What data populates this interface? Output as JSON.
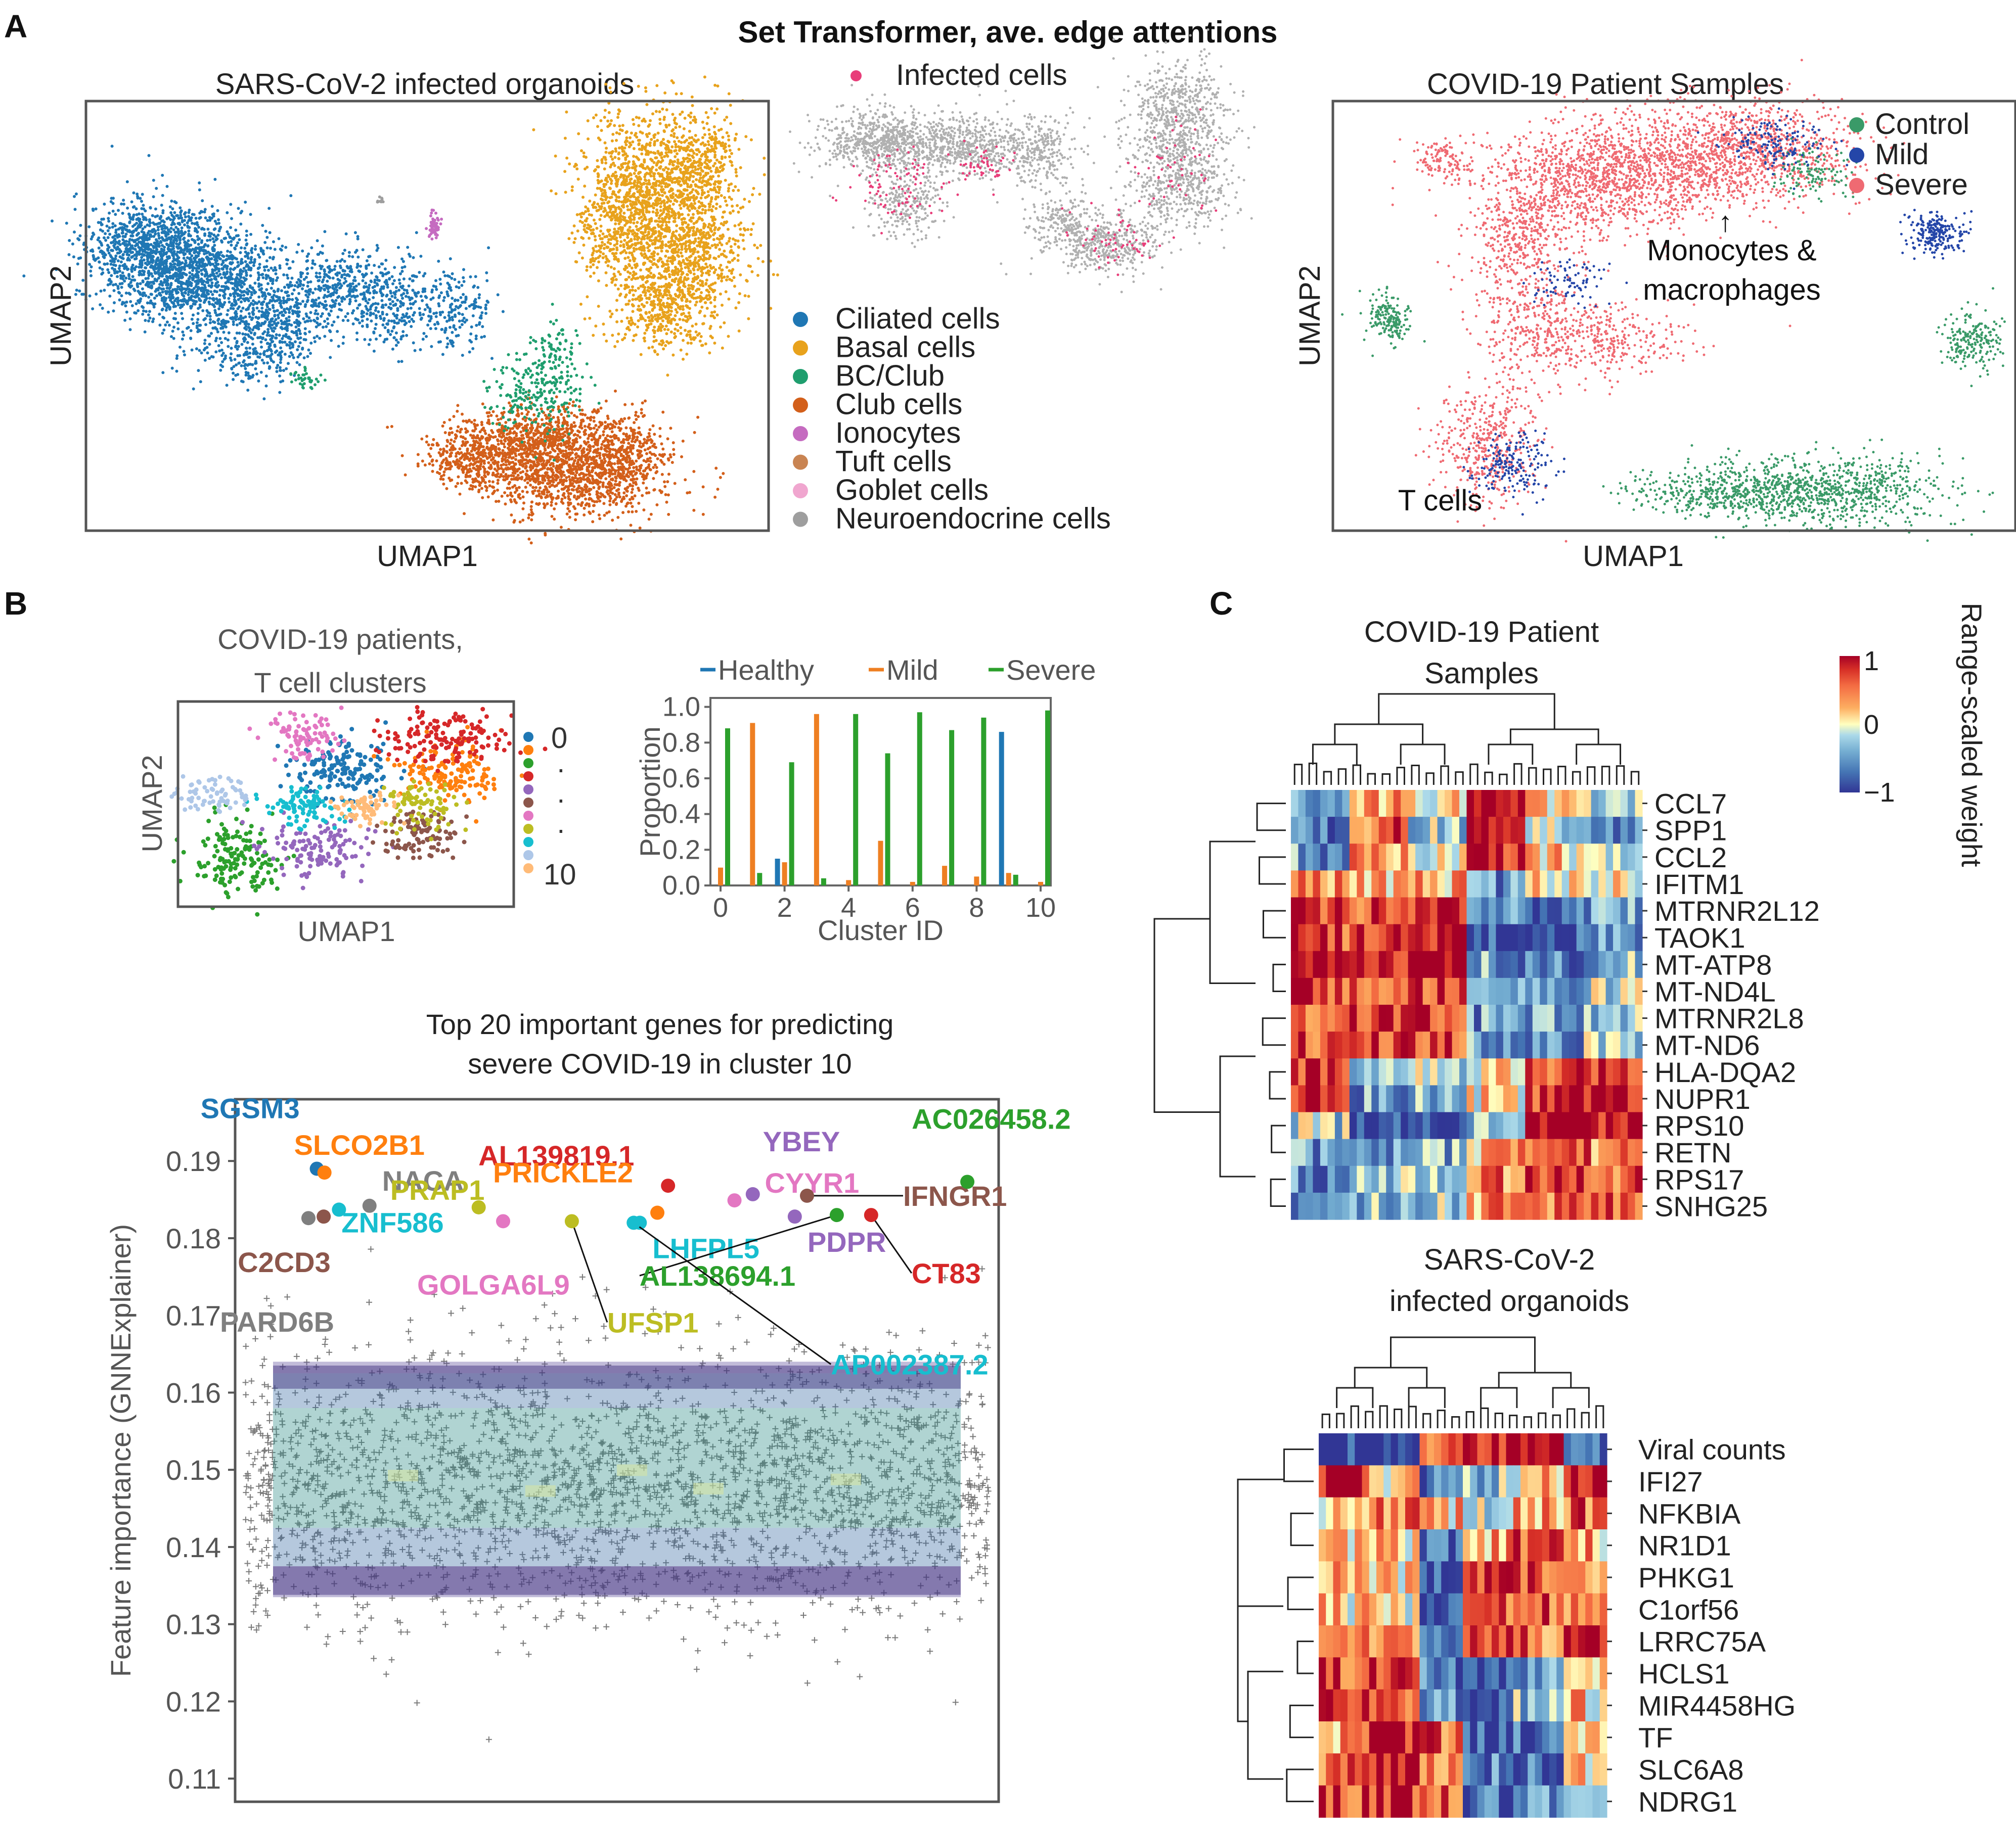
{
  "figure_title": "Set Transformer, ave. edge attentions",
  "panel_letters": {
    "a": "A",
    "b": "B",
    "c": "C"
  },
  "colors": {
    "ciliated": "#1f77b4",
    "basal": "#e8a21c",
    "bc_club": "#1f9e6e",
    "club": "#d35f1a",
    "ionocytes": "#c56bc0",
    "tuft": "#c98452",
    "goblet": "#f0a6cf",
    "neuroendo": "#9e9e9e",
    "infected": "#e83e7a",
    "control": "#3a9a68",
    "mild": "#2446a8",
    "severe": "#ef6a72",
    "healthy_bar": "#1f77b4",
    "mild_bar": "#ee7f22",
    "severe_bar": "#2ca02c",
    "frame": "#555555",
    "axis_text": "#444444"
  },
  "panel_a": {
    "organoid_title": "SARS-CoV-2 infected organoids",
    "organoid_xlabel": "UMAP1",
    "organoid_ylabel": "UMAP2",
    "infected_legend": "Infected cells",
    "cell_type_legend": [
      "Ciliated cells",
      "Basal cells",
      "BC/Club",
      "Club cells",
      "Ionocytes",
      "Tuft cells",
      "Goblet cells",
      "Neuroendocrine cells"
    ],
    "patient_title": "COVID-19 Patient Samples",
    "patient_xlabel": "UMAP1",
    "patient_ylabel": "UMAP2",
    "patient_legend": [
      "Control",
      "Mild",
      "Severe"
    ],
    "annotation_mono_line1": "Monocytes &",
    "annotation_mono_line2": "macrophages",
    "annotation_tcells": "T cells",
    "arrow_glyph": "↑"
  },
  "panel_b": {
    "tcell_title_line1": "COVID-19 patients,",
    "tcell_title_line2": "T cell clusters",
    "tcell_xlabel": "UMAP1",
    "tcell_ylabel": "UMAP2",
    "cluster_legend_first": "0",
    "cluster_legend_dots": [
      "·",
      "·",
      "·"
    ],
    "cluster_legend_last": "10",
    "gene_title_line1": "Top 20 important genes for predicting",
    "gene_title_line2": "severe COVID-19 in cluster 10"
  },
  "panel_c": {
    "patient_title_line1": "COVID-19 Patient",
    "patient_title_line2": "Samples",
    "organoid_title_line1": "SARS-CoV-2",
    "organoid_title_line2": "infected organoids",
    "colorbar_label": "Range-scaled weight",
    "colorbar_ticks": [
      "1",
      "0",
      "−1"
    ],
    "patient_genes": [
      "CCL7",
      "SPP1",
      "CCL2",
      "IFITM1",
      "MTRNR2L12",
      "TAOK1",
      "MT-ATP8",
      "MT-ND4L",
      "MTRNR2L8",
      "MT-ND6",
      "HLA-DQA2",
      "NUPR1",
      "RPS10",
      "RETN",
      "RPS17",
      "SNHG25"
    ],
    "organoid_genes": [
      "Viral counts",
      "IFI27",
      "NFKBIA",
      "NR1D1",
      "PHKG1",
      "C1orf56",
      "LRRC75A",
      "HCLS1",
      "MIR4458HG",
      "TF",
      "SLC6A8",
      "NDRG1"
    ]
  },
  "chart_data": [
    {
      "type": "bar",
      "title": "",
      "xlabel": "Cluster ID",
      "ylabel": "Proportion",
      "categories": [
        "0",
        "1",
        "2",
        "3",
        "4",
        "5",
        "6",
        "7",
        "8",
        "9",
        "10"
      ],
      "xticks": [
        "0",
        "2",
        "4",
        "6",
        "8",
        "10"
      ],
      "yticks": [
        "0.0",
        "0.2",
        "0.4",
        "0.6",
        "0.8",
        "1.0"
      ],
      "ylim": [
        0,
        1.05
      ],
      "legend_position": "top",
      "series": [
        {
          "name": "Healthy",
          "values": [
            0.0,
            0.0,
            0.15,
            0.0,
            0.0,
            0.0,
            0.0,
            0.0,
            0.0,
            0.86,
            0.0
          ]
        },
        {
          "name": "Mild",
          "values": [
            0.1,
            0.91,
            0.13,
            0.96,
            0.03,
            0.25,
            0.02,
            0.11,
            0.05,
            0.07,
            0.02
          ]
        },
        {
          "name": "Severe",
          "values": [
            0.88,
            0.07,
            0.69,
            0.04,
            0.96,
            0.74,
            0.97,
            0.87,
            0.94,
            0.06,
            0.98
          ]
        }
      ]
    },
    {
      "type": "scatter",
      "title": "Top 20 important genes for predicting severe COVID-19 in cluster 10",
      "xlabel": "",
      "ylabel": "Feature importance (GNNExplainer)",
      "yticks": [
        "0.11",
        "0.12",
        "0.13",
        "0.14",
        "0.15",
        "0.16",
        "0.17",
        "0.18",
        "0.19"
      ],
      "ylim": [
        0.107,
        0.198
      ],
      "background": "thousands of gray '+' markers for all genes, density between about 0.133 and 0.164",
      "points": [
        {
          "label": "SGSM3",
          "x": 0.107,
          "y": 0.189,
          "color": "#1f77b4"
        },
        {
          "label": "SLCO2B1",
          "x": 0.117,
          "y": 0.1885,
          "color": "#ff7f0e"
        },
        {
          "label": "NACA",
          "x": 0.176,
          "y": 0.1842,
          "color": "#7f7f7f"
        },
        {
          "label": "PRAP1",
          "x": 0.319,
          "y": 0.184,
          "color": "#bcbd22"
        },
        {
          "label": "ZNF586",
          "x": 0.136,
          "y": 0.1837,
          "color": "#17becf"
        },
        {
          "label": "C2CD3",
          "x": 0.116,
          "y": 0.1828,
          "color": "#8c564b"
        },
        {
          "label": "PARD6B",
          "x": 0.096,
          "y": 0.1826,
          "color": "#7f7f7f"
        },
        {
          "label": "GOLGA6L9",
          "x": 0.351,
          "y": 0.1822,
          "color": "#e377c2"
        },
        {
          "label": "UFSP1",
          "x": 0.441,
          "y": 0.1822,
          "color": "#bcbd22"
        },
        {
          "label": "AL139819.1",
          "x": 0.567,
          "y": 0.1868,
          "color": "#d62728"
        },
        {
          "label": "PRICKLE2",
          "x": 0.553,
          "y": 0.1833,
          "color": "#ff7f0e"
        },
        {
          "label": "YBEY",
          "x": 0.678,
          "y": 0.1857,
          "color": "#9467bd"
        },
        {
          "label": "CYYR1",
          "x": 0.654,
          "y": 0.1849,
          "color": "#e377c2"
        },
        {
          "label": "IFNGR1",
          "x": 0.749,
          "y": 0.1855,
          "color": "#8c564b"
        },
        {
          "label": "AC026458.2",
          "x": 0.959,
          "y": 0.1873,
          "color": "#2ca02c"
        },
        {
          "label": "LHFPL5",
          "x": 0.53,
          "y": 0.182,
          "color": "#17becf"
        },
        {
          "label": "PDPR",
          "x": 0.733,
          "y": 0.1828,
          "color": "#9467bd"
        },
        {
          "label": "AL138694.1",
          "x": 0.788,
          "y": 0.183,
          "color": "#2ca02c"
        },
        {
          "label": "CT83",
          "x": 0.833,
          "y": 0.183,
          "color": "#d62728"
        },
        {
          "label": "AP002387.2",
          "x": 0.522,
          "y": 0.182,
          "color": "#17becf"
        }
      ]
    },
    {
      "type": "heatmap",
      "title": "COVID-19 Patient Samples",
      "rows": [
        "CCL7",
        "SPP1",
        "CCL2",
        "IFITM1",
        "MTRNR2L12",
        "TAOK1",
        "MT-ATP8",
        "MT-ND4L",
        "MTRNR2L8",
        "MT-ND6",
        "HLA-DQA2",
        "NUPR1",
        "RPS10",
        "RETN",
        "RPS17",
        "SNHG25"
      ],
      "n_columns": 48,
      "value_range": [
        -1,
        1
      ],
      "colormap": "RdYlBu_r",
      "dendrograms": [
        "rows",
        "columns"
      ]
    },
    {
      "type": "heatmap",
      "title": "SARS-CoV-2 infected organoids",
      "rows": [
        "Viral counts",
        "IFI27",
        "NFKBIA",
        "NR1D1",
        "PHKG1",
        "C1orf56",
        "LRRC75A",
        "HCLS1",
        "MIR4458HG",
        "TF",
        "SLC6A8",
        "NDRG1"
      ],
      "n_columns": 40,
      "value_range": [
        -1,
        1
      ],
      "colormap": "RdYlBu_r",
      "dendrograms": [
        "rows",
        "columns"
      ]
    }
  ]
}
